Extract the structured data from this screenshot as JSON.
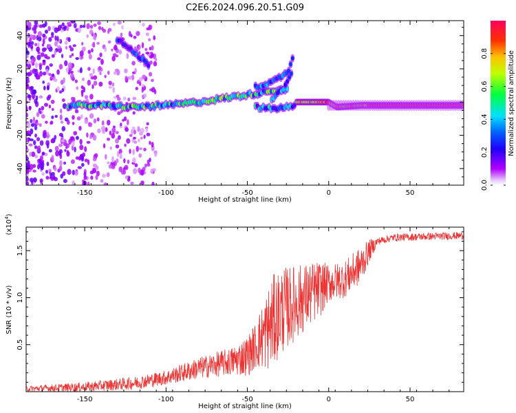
{
  "title": "C2E6.2024.096.20.51.G09",
  "chart_data": [
    {
      "type": "heatmap",
      "xlabel": "Height of straight line (km)",
      "ylabel": "Frequency (Hz)",
      "xlim": [
        -186,
        83
      ],
      "ylim": [
        -50,
        49
      ],
      "xticks": [
        -150,
        -100,
        -50,
        0,
        50
      ],
      "yticks": [
        -40,
        -20,
        0,
        20,
        40
      ],
      "colorbar": {
        "label": "Normalized spectral amplitude",
        "range": [
          0,
          1
        ],
        "ticks": [
          0.0,
          0.2,
          0.4,
          0.6,
          0.8
        ],
        "tick_labels": [
          "0.0",
          "0.2",
          "0.4",
          "0.6",
          "0.8"
        ],
        "colormap": [
          "#ffffff",
          "#ff00ff",
          "#7f00ff",
          "#0000ff",
          "#00ffff",
          "#00ff00",
          "#ffff00",
          "#ff8000",
          "#ff0000",
          "#ff0040"
        ]
      },
      "tracks": [
        {
          "x": [
            -160,
            -140,
            -120,
            -100,
            -80,
            -60,
            -45,
            -35,
            -25
          ],
          "y": [
            -2,
            -2,
            -3,
            -2,
            0,
            3,
            5,
            7,
            8
          ],
          "amp": 0.45
        },
        {
          "x": [
            -45,
            -35,
            -25,
            -20
          ],
          "y": [
            -3,
            -4,
            -3,
            -2
          ],
          "amp": 0.35
        },
        {
          "x": [
            -45,
            -35,
            -25,
            -22
          ],
          "y": [
            9,
            12,
            18,
            28
          ],
          "amp": 0.3
        },
        {
          "x": [
            -35,
            -28,
            -22
          ],
          "y": [
            2,
            8,
            20
          ],
          "amp": 0.3
        },
        {
          "x": [
            -130,
            -120,
            -110
          ],
          "y": [
            38,
            30,
            22
          ],
          "amp": 0.25
        },
        {
          "x": [
            -20,
            -5,
            0,
            5,
            20,
            40,
            60,
            83
          ],
          "y": [
            0,
            0,
            0,
            -3,
            -2,
            -2,
            -2,
            -2
          ],
          "amp": 0.95
        }
      ]
    },
    {
      "type": "line",
      "xlabel": "Height of straight line (km)",
      "ylabel": "SNR (10 * v/v)",
      "y_multiplier": "(x10^4)",
      "xlim": [
        -186,
        83
      ],
      "ylim": [
        0,
        17500
      ],
      "xticks": [
        -150,
        -100,
        -50,
        0,
        50
      ],
      "yticks": [
        5000,
        10000,
        15000
      ],
      "ytick_labels": [
        "0.5",
        "1.0",
        "1.5"
      ],
      "color": "#ee3333",
      "trend": {
        "x": [
          -186,
          -150,
          -120,
          -100,
          -80,
          -60,
          -50,
          -40,
          -30,
          -20,
          -10,
          0,
          10,
          20,
          25,
          30,
          40,
          60,
          83
        ],
        "y": [
          300,
          500,
          900,
          1500,
          2500,
          3200,
          3800,
          6000,
          8500,
          9500,
          10500,
          11500,
          12000,
          13500,
          15000,
          16000,
          16400,
          16500,
          16600
        ]
      },
      "noise_amplitude": {
        "x": [
          -186,
          -100,
          -60,
          -45,
          -35,
          -20,
          -5,
          0,
          20,
          30,
          83
        ],
        "y": [
          300,
          800,
          1500,
          2500,
          5000,
          4000,
          3000,
          2000,
          2000,
          400,
          400
        ]
      }
    }
  ]
}
